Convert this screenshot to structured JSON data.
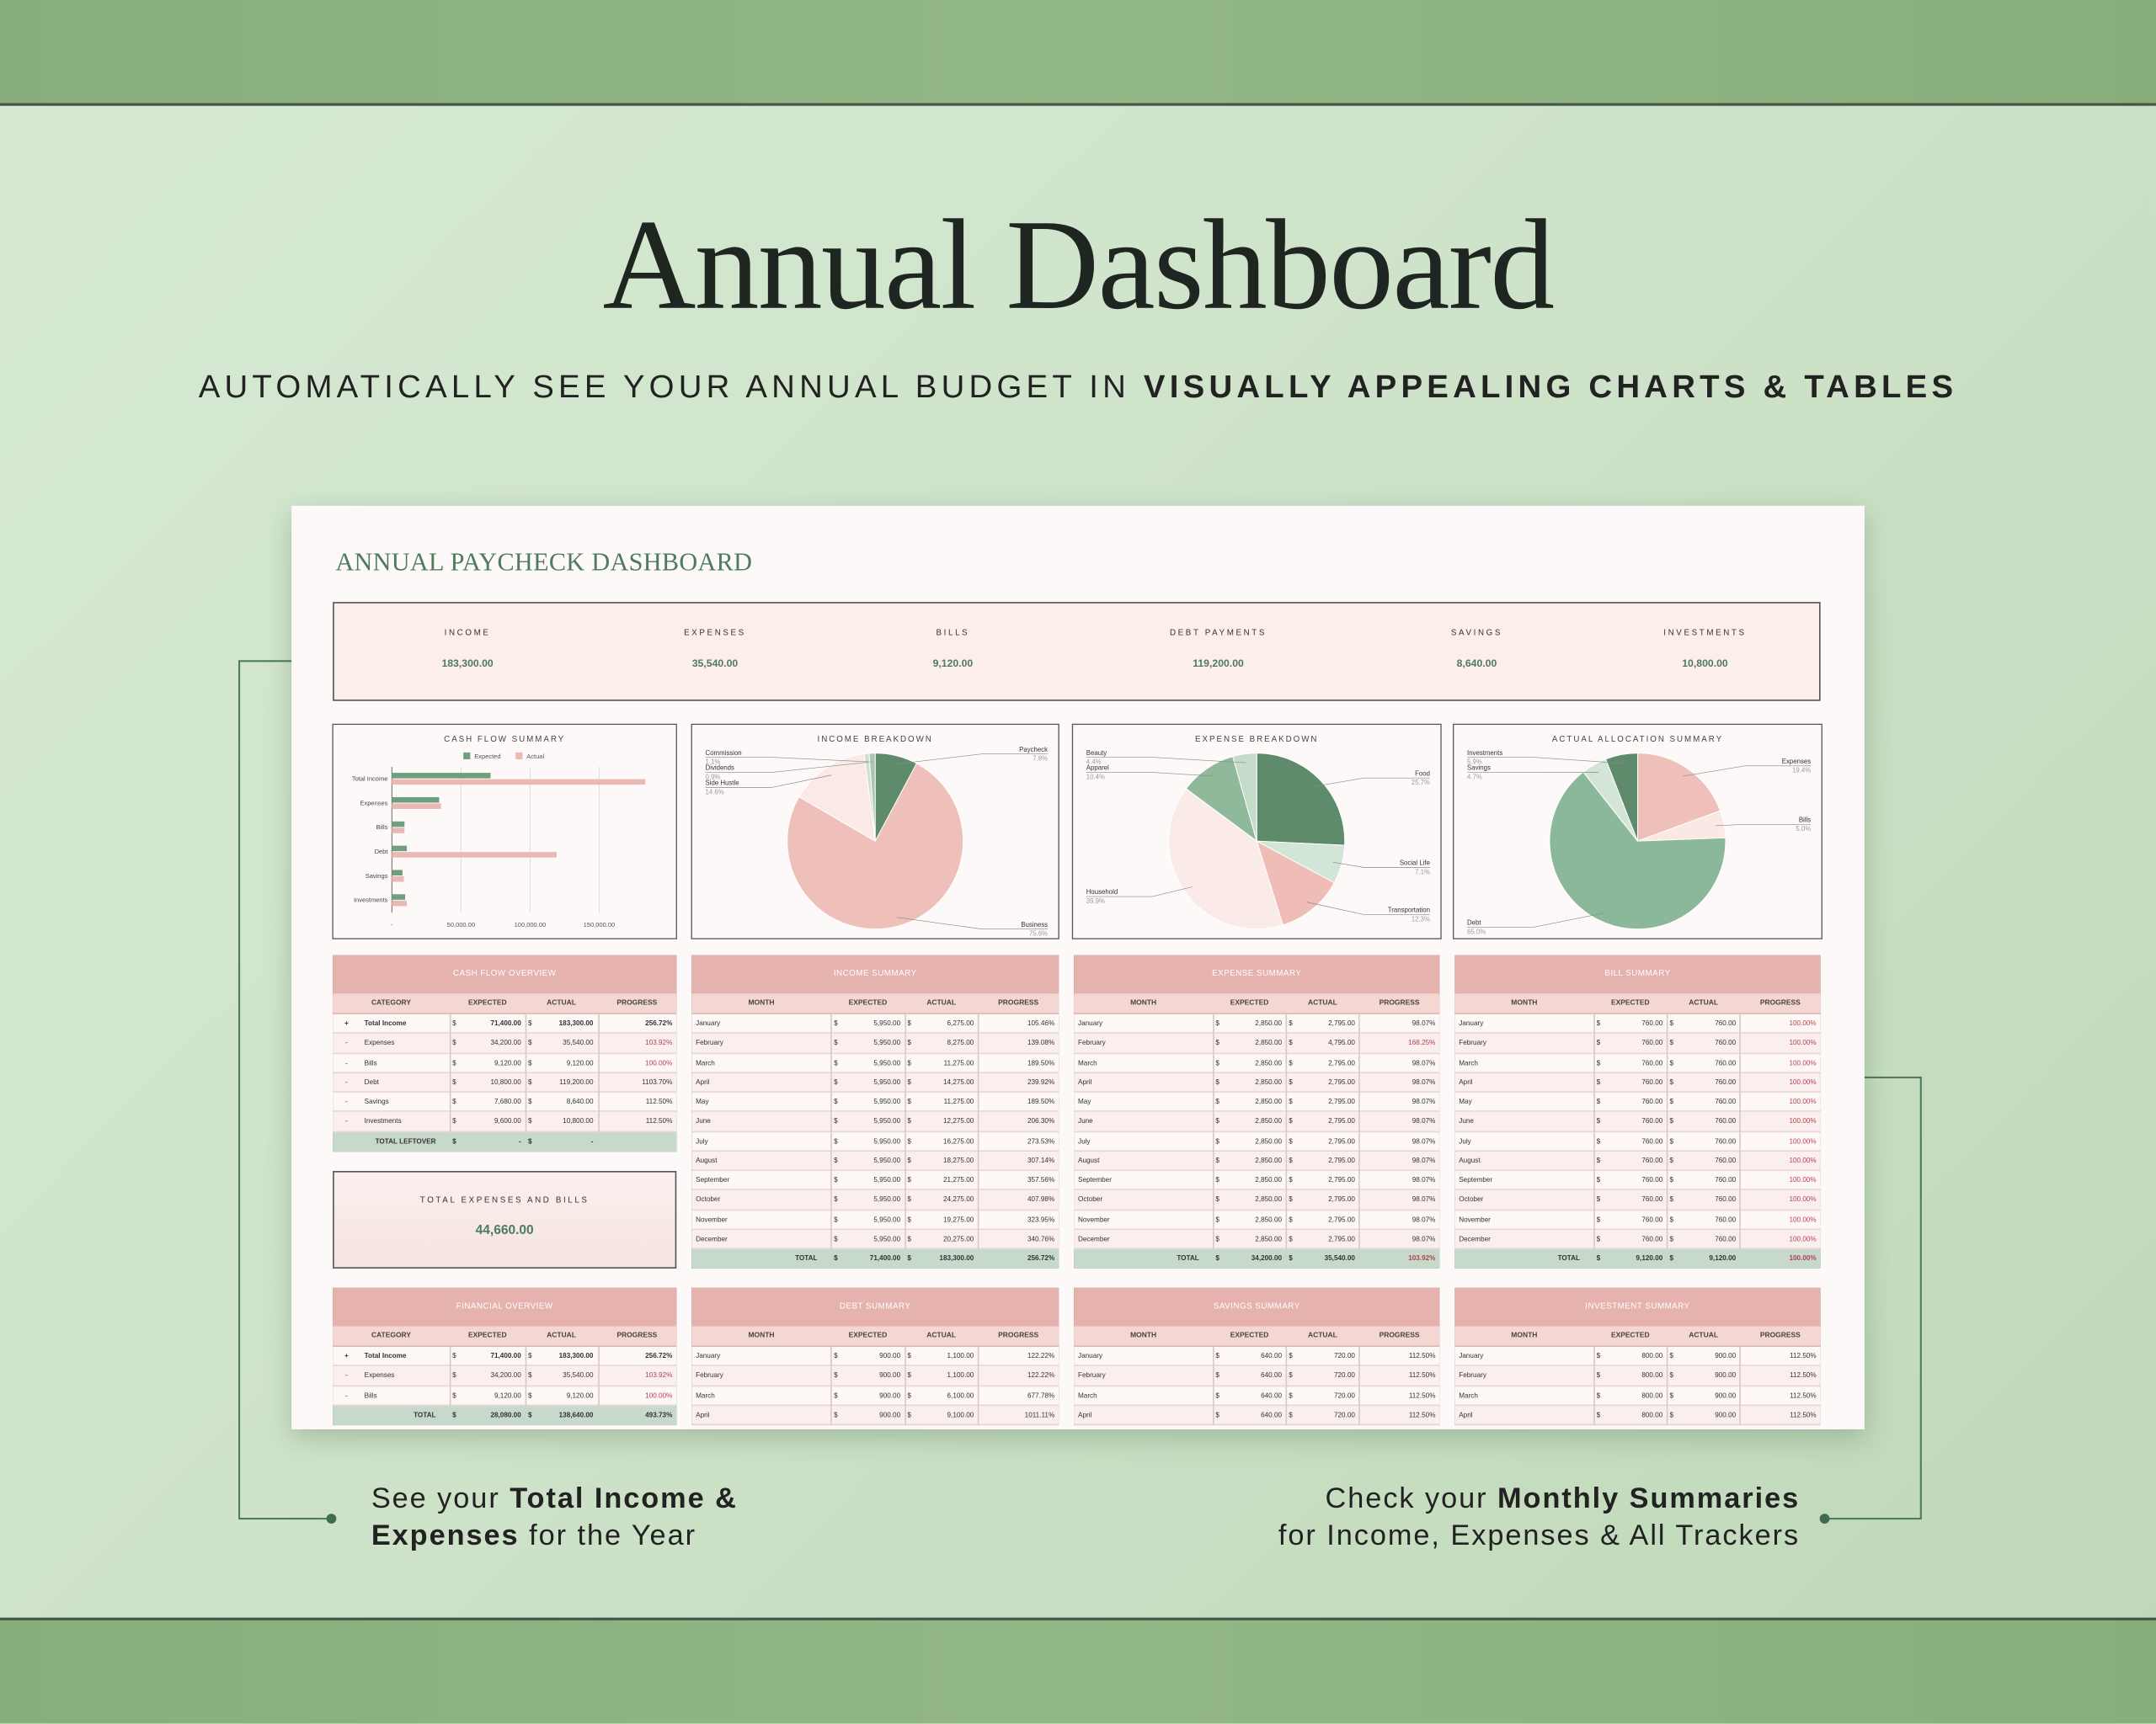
{
  "header": {
    "title": "Annual Dashboard",
    "subtitle": [
      {
        "text": "AUTOMATICALLY SEE YOUR ANNUAL BUDGET IN ",
        "bold": false
      },
      {
        "text": "VISUALLY APPEALING CHARTS & TABLES",
        "bold": true
      }
    ]
  },
  "callouts": {
    "left": {
      "lines": [
        [
          {
            "text": "See your ",
            "bold": false
          },
          {
            "text": "Total Income &",
            "bold": true
          }
        ],
        [
          {
            "text": "Expenses",
            "bold": true
          },
          {
            "text": " for the Year",
            "bold": false
          }
        ]
      ]
    },
    "right": {
      "lines": [
        [
          {
            "text": "Check your ",
            "bold": false
          },
          {
            "text": "Monthly Summaries",
            "bold": true
          }
        ],
        [
          {
            "text": "for Income, Expenses & All Trackers",
            "bold": false
          }
        ]
      ]
    }
  },
  "sheet": {
    "title": "ANNUAL PAYCHECK DASHBOARD",
    "currency": "$",
    "alert_color": "#b3424c",
    "kpis": [
      {
        "label": "INCOME",
        "value": "183,300.00"
      },
      {
        "label": "EXPENSES",
        "value": "35,540.00"
      },
      {
        "label": "BILLS",
        "value": "9,120.00"
      },
      {
        "label": "DEBT PAYMENTS",
        "value": "119,200.00"
      },
      {
        "label": "SAVINGS",
        "value": "8,640.00"
      },
      {
        "label": "INVESTMENTS",
        "value": "10,800.00"
      }
    ],
    "total_box": {
      "label": "TOTAL EXPENSES AND BILLS",
      "value": "44,660.00"
    }
  },
  "chart_data": [
    {
      "type": "bar",
      "title": "CASH FLOW SUMMARY",
      "orientation": "horizontal",
      "categories": [
        "Total Income",
        "Expenses",
        "Bills",
        "Debt",
        "Savings",
        "Investments"
      ],
      "series": [
        {
          "name": "Expected",
          "color": "#6f9f7d",
          "values": [
            71400,
            34200,
            9120,
            10800,
            7680,
            9600
          ]
        },
        {
          "name": "Actual",
          "color": "#ebb8b3",
          "values": [
            183300,
            35540,
            9120,
            119200,
            8640,
            10800
          ]
        }
      ],
      "xlim": [
        0,
        200000
      ],
      "xticks": [
        {
          "value": 0,
          "label": "-"
        },
        {
          "value": 50000,
          "label": "50,000.00"
        },
        {
          "value": 100000,
          "label": "100,000.00"
        },
        {
          "value": 150000,
          "label": "150,000.00"
        }
      ],
      "grid": true,
      "legend": "top"
    },
    {
      "type": "pie",
      "title": "INCOME BREAKDOWN",
      "categories": [
        "Paycheck",
        "Business",
        "Side Hustle",
        "Dividends",
        "Commission"
      ],
      "values": [
        7.8,
        75.6,
        14.6,
        0.9,
        1.1
      ],
      "value_labels": [
        "7.8%",
        "75.6%",
        "14.6%",
        "0.9%",
        "1.1%"
      ],
      "colors": [
        "#5e8b6c",
        "#efc0ba",
        "#fbe9e6",
        "#cfe0d3",
        "#a9c8b2"
      ]
    },
    {
      "type": "pie",
      "title": "EXPENSE BREAKDOWN",
      "categories": [
        "Food",
        "Social Life",
        "Transportation",
        "Household",
        "Apparel",
        "Beauty"
      ],
      "values": [
        25.7,
        7.1,
        12.3,
        39.9,
        10.4,
        4.4
      ],
      "value_labels": [
        "25.7%",
        "7.1%",
        "12.3%",
        "39.9%",
        "10.4%",
        "4.4%"
      ],
      "colors": [
        "#5e8b6c",
        "#d3e5d7",
        "#efbcb6",
        "#fbebe8",
        "#8fb99a",
        "#c5dccb"
      ]
    },
    {
      "type": "pie",
      "title": "ACTUAL ALLOCATION SUMMARY",
      "categories": [
        "Expenses",
        "Bills",
        "Debt",
        "Savings",
        "Investments"
      ],
      "values": [
        19.4,
        5.0,
        65.0,
        4.7,
        5.9
      ],
      "value_labels": [
        "19.4%",
        "5.0%",
        "65.0%",
        "4.7%",
        "5.9%"
      ],
      "colors": [
        "#efbfb9",
        "#fbe7e4",
        "#8bb89a",
        "#d3e5d7",
        "#5e8b6c"
      ]
    }
  ],
  "tables": [
    {
      "title": "CASH FLOW OVERVIEW",
      "columns": [
        "CATEGORY",
        "EXPECTED",
        "ACTUAL",
        "PROGRESS"
      ],
      "rows": [
        [
          "+",
          "Total Income",
          "71,400.00",
          "183,300.00",
          "256.72%"
        ],
        [
          "-",
          "Expenses",
          "34,200.00",
          "35,540.00",
          "103.92%"
        ],
        [
          "-",
          "Bills",
          "9,120.00",
          "9,120.00",
          "100.00%"
        ],
        [
          "-",
          "Debt",
          "10,800.00",
          "119,200.00",
          "1103.70%"
        ],
        [
          "-",
          "Savings",
          "7,680.00",
          "8,640.00",
          "112.50%"
        ],
        [
          "-",
          "Investments",
          "9,600.00",
          "10,800.00",
          "112.50%"
        ]
      ],
      "total": [
        "TOTAL LEFTOVER",
        "-",
        "-"
      ],
      "bold_rows": [
        0
      ],
      "alert_rows": [
        1,
        2
      ],
      "alert_total": false
    },
    {
      "title": "INCOME SUMMARY",
      "columns": [
        "MONTH",
        "EXPECTED",
        "ACTUAL",
        "PROGRESS"
      ],
      "rows": [
        [
          "January",
          "5,950.00",
          "6,275.00",
          "105.46%"
        ],
        [
          "February",
          "5,950.00",
          "8,275.00",
          "139.08%"
        ],
        [
          "March",
          "5,950.00",
          "11,275.00",
          "189.50%"
        ],
        [
          "April",
          "5,950.00",
          "14,275.00",
          "239.92%"
        ],
        [
          "May",
          "5,950.00",
          "11,275.00",
          "189.50%"
        ],
        [
          "June",
          "5,950.00",
          "12,275.00",
          "206.30%"
        ],
        [
          "July",
          "5,950.00",
          "16,275.00",
          "273.53%"
        ],
        [
          "August",
          "5,950.00",
          "18,275.00",
          "307.14%"
        ],
        [
          "September",
          "5,950.00",
          "21,275.00",
          "357.56%"
        ],
        [
          "October",
          "5,950.00",
          "24,275.00",
          "407.98%"
        ],
        [
          "November",
          "5,950.00",
          "19,275.00",
          "323.95%"
        ],
        [
          "December",
          "5,950.00",
          "20,275.00",
          "340.76%"
        ]
      ],
      "total": [
        "TOTAL",
        "71,400.00",
        "183,300.00",
        "256.72%"
      ],
      "bold_rows": [],
      "alert_rows": [],
      "alert_total": false
    },
    {
      "title": "EXPENSE SUMMARY",
      "columns": [
        "MONTH",
        "EXPECTED",
        "ACTUAL",
        "PROGRESS"
      ],
      "rows": [
        [
          "January",
          "2,850.00",
          "2,795.00",
          "98.07%"
        ],
        [
          "February",
          "2,850.00",
          "4,795.00",
          "168.25%"
        ],
        [
          "March",
          "2,850.00",
          "2,795.00",
          "98.07%"
        ],
        [
          "April",
          "2,850.00",
          "2,795.00",
          "98.07%"
        ],
        [
          "May",
          "2,850.00",
          "2,795.00",
          "98.07%"
        ],
        [
          "June",
          "2,850.00",
          "2,795.00",
          "98.07%"
        ],
        [
          "July",
          "2,850.00",
          "2,795.00",
          "98.07%"
        ],
        [
          "August",
          "2,850.00",
          "2,795.00",
          "98.07%"
        ],
        [
          "September",
          "2,850.00",
          "2,795.00",
          "98.07%"
        ],
        [
          "October",
          "2,850.00",
          "2,795.00",
          "98.07%"
        ],
        [
          "November",
          "2,850.00",
          "2,795.00",
          "98.07%"
        ],
        [
          "December",
          "2,850.00",
          "2,795.00",
          "98.07%"
        ]
      ],
      "total": [
        "TOTAL",
        "34,200.00",
        "35,540.00",
        "103.92%"
      ],
      "bold_rows": [],
      "alert_rows": [
        1
      ],
      "alert_total": true
    },
    {
      "title": "BILL SUMMARY",
      "columns": [
        "MONTH",
        "EXPECTED",
        "ACTUAL",
        "PROGRESS"
      ],
      "rows": [
        [
          "January",
          "760.00",
          "760.00",
          "100.00%"
        ],
        [
          "February",
          "760.00",
          "760.00",
          "100.00%"
        ],
        [
          "March",
          "760.00",
          "760.00",
          "100.00%"
        ],
        [
          "April",
          "760.00",
          "760.00",
          "100.00%"
        ],
        [
          "May",
          "760.00",
          "760.00",
          "100.00%"
        ],
        [
          "June",
          "760.00",
          "760.00",
          "100.00%"
        ],
        [
          "July",
          "760.00",
          "760.00",
          "100.00%"
        ],
        [
          "August",
          "760.00",
          "760.00",
          "100.00%"
        ],
        [
          "September",
          "760.00",
          "760.00",
          "100.00%"
        ],
        [
          "October",
          "760.00",
          "760.00",
          "100.00%"
        ],
        [
          "November",
          "760.00",
          "760.00",
          "100.00%"
        ],
        [
          "December",
          "760.00",
          "760.00",
          "100.00%"
        ]
      ],
      "total": [
        "TOTAL",
        "9,120.00",
        "9,120.00",
        "100.00%"
      ],
      "bold_rows": [],
      "alert_rows": [
        0,
        1,
        2,
        3,
        4,
        5,
        6,
        7,
        8,
        9,
        10,
        11
      ],
      "alert_total": true
    },
    {
      "title": "FINANCIAL OVERVIEW",
      "columns": [
        "CATEGORY",
        "EXPECTED",
        "ACTUAL",
        "PROGRESS"
      ],
      "rows": [
        [
          "+",
          "Total Income",
          "71,400.00",
          "183,300.00",
          "256.72%"
        ],
        [
          "-",
          "Expenses",
          "34,200.00",
          "35,540.00",
          "103.92%"
        ],
        [
          "-",
          "Bills",
          "9,120.00",
          "9,120.00",
          "100.00%"
        ]
      ],
      "total": [
        "TOTAL",
        "28,080.00",
        "138,640.00",
        "493.73%"
      ],
      "bold_rows": [
        0
      ],
      "alert_rows": [
        1,
        2
      ],
      "alert_total": false
    },
    {
      "title": "DEBT SUMMARY",
      "columns": [
        "MONTH",
        "EXPECTED",
        "ACTUAL",
        "PROGRESS"
      ],
      "rows": [
        [
          "January",
          "900.00",
          "1,100.00",
          "122.22%"
        ],
        [
          "February",
          "900.00",
          "1,100.00",
          "122.22%"
        ],
        [
          "March",
          "900.00",
          "6,100.00",
          "677.78%"
        ],
        [
          "April",
          "900.00",
          "9,100.00",
          "1011.11%"
        ]
      ],
      "bold_rows": [],
      "alert_rows": [],
      "alert_total": false
    },
    {
      "title": "SAVINGS SUMMARY",
      "columns": [
        "MONTH",
        "EXPECTED",
        "ACTUAL",
        "PROGRESS"
      ],
      "rows": [
        [
          "January",
          "640.00",
          "720.00",
          "112.50%"
        ],
        [
          "February",
          "640.00",
          "720.00",
          "112.50%"
        ],
        [
          "March",
          "640.00",
          "720.00",
          "112.50%"
        ],
        [
          "April",
          "640.00",
          "720.00",
          "112.50%"
        ]
      ],
      "bold_rows": [],
      "alert_rows": [],
      "alert_total": false
    },
    {
      "title": "INVESTMENT SUMMARY",
      "columns": [
        "MONTH",
        "EXPECTED",
        "ACTUAL",
        "PROGRESS"
      ],
      "rows": [
        [
          "January",
          "800.00",
          "900.00",
          "112.50%"
        ],
        [
          "February",
          "800.00",
          "900.00",
          "112.50%"
        ],
        [
          "March",
          "800.00",
          "900.00",
          "112.50%"
        ],
        [
          "April",
          "800.00",
          "900.00",
          "112.50%"
        ]
      ],
      "bold_rows": [],
      "alert_rows": [],
      "alert_total": false
    }
  ]
}
